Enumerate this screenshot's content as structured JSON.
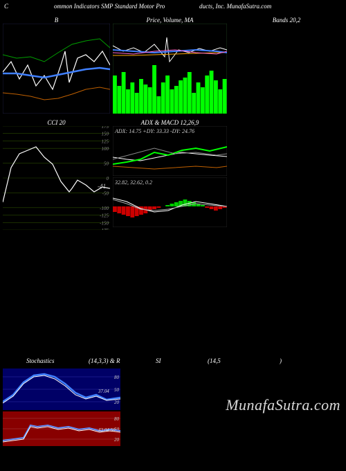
{
  "header": {
    "left": "C",
    "mid": "ommon  Indicators SMP Standard Motor Pro",
    "right": "ducts, Inc. MunafaSutra.com"
  },
  "row1": {
    "panelA": {
      "title": "B",
      "width": 155,
      "height": 130,
      "background": "#000000",
      "border": "#1a1a3a",
      "lines": [
        {
          "color": "#ffffff",
          "width": 1.2,
          "points": [
            0,
            70,
            12,
            55,
            24,
            80,
            36,
            60,
            48,
            90,
            60,
            75,
            72,
            95,
            84,
            60,
            90,
            40,
            96,
            85,
            108,
            50,
            120,
            45,
            132,
            55,
            144,
            40,
            155,
            60
          ]
        },
        {
          "color": "#00a000",
          "width": 1,
          "points": [
            0,
            45,
            20,
            50,
            40,
            48,
            60,
            55,
            80,
            42,
            100,
            30,
            120,
            25,
            140,
            22,
            155,
            35
          ]
        },
        {
          "color": "#4080ff",
          "width": 2.5,
          "points": [
            0,
            72,
            20,
            72,
            40,
            75,
            60,
            78,
            80,
            74,
            100,
            70,
            120,
            66,
            140,
            64,
            155,
            66
          ]
        },
        {
          "color": "#c06000",
          "width": 1,
          "points": [
            0,
            100,
            20,
            102,
            40,
            105,
            60,
            110,
            80,
            108,
            100,
            102,
            120,
            95,
            140,
            92,
            155,
            95
          ]
        }
      ]
    },
    "panelB": {
      "title": "Price,  Volume,  MA",
      "width": 165,
      "height": 130,
      "background": "#000000",
      "border": "#1a3a1a",
      "volume_color": "#00ff00",
      "volume": [
        55,
        40,
        60,
        35,
        45,
        30,
        50,
        42,
        38,
        70,
        25,
        45,
        55,
        35,
        40,
        48,
        52,
        60,
        30,
        45,
        38,
        55,
        62,
        48,
        35,
        50
      ],
      "lines": [
        {
          "color": "#ffffff",
          "width": 1,
          "points": [
            0,
            32,
            15,
            40,
            30,
            35,
            45,
            42,
            60,
            30,
            75,
            48,
            78,
            20,
            82,
            55,
            95,
            38,
            110,
            42,
            125,
            36,
            140,
            40,
            155,
            35,
            165,
            38
          ]
        },
        {
          "color": "#ffaa00",
          "width": 1,
          "points": [
            0,
            46,
            30,
            46,
            60,
            45,
            90,
            44,
            120,
            43,
            150,
            42,
            165,
            42
          ]
        },
        {
          "color": "#4080ff",
          "width": 2,
          "points": [
            0,
            38,
            30,
            40,
            60,
            42,
            90,
            40,
            120,
            38,
            150,
            40,
            165,
            42
          ]
        },
        {
          "color": "#ff66cc",
          "width": 1,
          "points": [
            0,
            42,
            30,
            44,
            60,
            40,
            90,
            38,
            120,
            42,
            150,
            44,
            165,
            40
          ]
        }
      ]
    },
    "panelC": {
      "title": "Bands 20,2"
    }
  },
  "row2": {
    "panelA": {
      "title": "CCI 20",
      "width": 155,
      "height": 150,
      "background": "#000000",
      "grid_color": "#2a4a00",
      "ticks": [
        175,
        150,
        125,
        100,
        50,
        0,
        -50,
        -100,
        -125,
        -150,
        -175
      ],
      "tick_fontsize": 7,
      "current_label": "-41",
      "line": {
        "color": "#ffffff",
        "width": 1.2,
        "points": [
          0,
          110,
          12,
          60,
          24,
          40,
          36,
          35,
          48,
          30,
          60,
          45,
          72,
          55,
          84,
          80,
          96,
          95,
          100,
          90,
          108,
          78,
          120,
          85,
          132,
          95,
          144,
          88,
          155,
          90
        ]
      }
    },
    "adx": {
      "title": "ADX  & MACD 12,26,9",
      "label": "ADX: 14.75 +DY: 33.33 -DY: 24.76",
      "width": 165,
      "height": 72,
      "background": "#000000",
      "lines": [
        {
          "color": "#ffffff",
          "width": 1,
          "points": [
            0,
            45,
            20,
            48,
            40,
            50,
            60,
            46,
            80,
            42,
            100,
            38,
            120,
            40,
            140,
            42,
            165,
            44
          ]
        },
        {
          "color": "#00ff00",
          "width": 2,
          "points": [
            0,
            55,
            20,
            52,
            40,
            48,
            60,
            38,
            80,
            42,
            100,
            35,
            120,
            32,
            140,
            36,
            165,
            30
          ]
        },
        {
          "color": "#c06000",
          "width": 1,
          "points": [
            0,
            58,
            30,
            60,
            60,
            62,
            90,
            60,
            120,
            58,
            150,
            60,
            165,
            58
          ]
        },
        {
          "color": "#888888",
          "width": 1,
          "points": [
            0,
            48,
            30,
            40,
            60,
            32,
            90,
            40,
            120,
            38,
            150,
            42,
            165,
            40
          ]
        }
      ]
    },
    "macd": {
      "label": "32.82, 32.62, 0.2",
      "width": 165,
      "height": 72,
      "background": "#000000",
      "hist_pos_color": "#00cc00",
      "hist_neg_color": "#cc0000",
      "hist": [
        -8,
        -10,
        -12,
        -14,
        -16,
        -14,
        -12,
        -10,
        -6,
        -4,
        -2,
        0,
        2,
        4,
        6,
        8,
        10,
        8,
        6,
        4,
        2,
        -2,
        -4,
        -6,
        -4,
        -2
      ],
      "lines": [
        {
          "color": "#ffffff",
          "width": 1,
          "points": [
            0,
            30,
            20,
            35,
            40,
            45,
            60,
            50,
            80,
            48,
            100,
            40,
            120,
            35,
            140,
            38,
            165,
            42
          ]
        },
        {
          "color": "#aaaaaa",
          "width": 1,
          "points": [
            0,
            32,
            20,
            38,
            40,
            46,
            60,
            48,
            80,
            46,
            100,
            42,
            120,
            38,
            140,
            40,
            165,
            42
          ]
        }
      ]
    }
  },
  "stoch_header": {
    "left": "Stochastics",
    "mid": "(14,3,3) & R",
    "r1": "SI",
    "r2": "(14,5",
    "r3": ")"
  },
  "stoch1": {
    "width": 170,
    "height": 60,
    "background": "#000066",
    "grid_color": "#3333aa",
    "ticks": [
      80,
      50,
      20
    ],
    "value_label": "37.04",
    "lines": [
      {
        "color": "#4080ff",
        "width": 2.5,
        "points": [
          0,
          48,
          15,
          38,
          30,
          20,
          45,
          10,
          60,
          8,
          75,
          12,
          90,
          22,
          105,
          35,
          120,
          42,
          135,
          38,
          150,
          45,
          170,
          42
        ]
      },
      {
        "color": "#ffffff",
        "width": 1,
        "points": [
          0,
          50,
          15,
          40,
          30,
          22,
          45,
          12,
          60,
          10,
          75,
          15,
          90,
          25,
          105,
          38,
          120,
          44,
          135,
          40,
          150,
          46,
          170,
          44
        ]
      }
    ]
  },
  "stoch2": {
    "width": 170,
    "height": 50,
    "background": "#880000",
    "grid_color": "#aa4444",
    "ticks": [
      80,
      50,
      20
    ],
    "value_label": "43.04 50",
    "lines": [
      {
        "color": "#6090ff",
        "width": 2,
        "points": [
          0,
          42,
          15,
          40,
          30,
          38,
          40,
          20,
          50,
          22,
          65,
          20,
          80,
          24,
          95,
          22,
          110,
          26,
          125,
          24,
          140,
          28,
          155,
          26,
          170,
          28
        ]
      },
      {
        "color": "#ffffff",
        "width": 1,
        "points": [
          0,
          44,
          15,
          42,
          30,
          40,
          40,
          22,
          50,
          24,
          65,
          22,
          80,
          26,
          95,
          24,
          110,
          28,
          125,
          26,
          140,
          30,
          155,
          28,
          170,
          30
        ]
      }
    ]
  },
  "watermark": "MunafaSutra.com"
}
